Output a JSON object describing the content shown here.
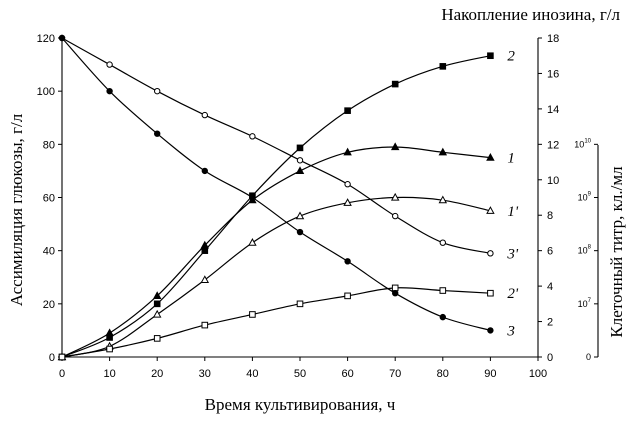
{
  "chart_data": {
    "type": "line",
    "title": "Накопление инозина, г/л",
    "xlabel": "Время культивирования, ч",
    "ylabel_left": "Ассимиляция глюкозы, г/л",
    "ylabel_right_outer": "Клеточный титр, кл./мл",
    "xlim": [
      0,
      100
    ],
    "ylim_left": [
      0,
      120
    ],
    "ylim_right": [
      0,
      18
    ],
    "x_ticks": [
      0,
      10,
      20,
      30,
      40,
      50,
      60,
      70,
      80,
      90,
      100
    ],
    "y_left_ticks": [
      0,
      20,
      40,
      60,
      80,
      100,
      120
    ],
    "y_right_ticks": [
      0,
      2,
      4,
      6,
      8,
      10,
      12,
      14,
      16,
      18
    ],
    "titer_ticks": [
      {
        "label": "0",
        "value": 0
      },
      {
        "label": "10^7",
        "value": 20
      },
      {
        "label": "10^8",
        "value": 40
      },
      {
        "label": "10^9",
        "value": 60
      },
      {
        "label": "10^10",
        "value": 80
      }
    ],
    "series": [
      {
        "name": "2",
        "marker": "square-filled",
        "axis": "right",
        "x": [
          0,
          10,
          20,
          30,
          40,
          50,
          60,
          70,
          80,
          90
        ],
        "values": [
          0,
          1.1,
          3.0,
          6.0,
          9.1,
          11.8,
          13.9,
          15.4,
          16.4,
          17.0
        ]
      },
      {
        "name": "1",
        "marker": "triangle-filled",
        "axis": "left",
        "x": [
          0,
          10,
          20,
          30,
          40,
          50,
          60,
          70,
          80,
          90
        ],
        "values": [
          0,
          9,
          23,
          42,
          59,
          70,
          77,
          79,
          77,
          75
        ]
      },
      {
        "name": "1'",
        "marker": "triangle-open",
        "axis": "left",
        "x": [
          0,
          10,
          20,
          30,
          40,
          50,
          60,
          70,
          80,
          90
        ],
        "values": [
          0,
          4,
          16,
          29,
          43,
          53,
          58,
          60,
          59,
          55
        ]
      },
      {
        "name": "3'",
        "marker": "circle-open",
        "axis": "left",
        "x": [
          0,
          10,
          20,
          30,
          40,
          50,
          60,
          70,
          80,
          90
        ],
        "values": [
          120,
          110,
          100,
          91,
          83,
          74,
          65,
          53,
          43,
          39
        ]
      },
      {
        "name": "2'",
        "marker": "square-open",
        "axis": "left",
        "x": [
          0,
          10,
          20,
          30,
          40,
          50,
          60,
          70,
          80,
          90
        ],
        "values": [
          0,
          3,
          7,
          12,
          16,
          20,
          23,
          26,
          25,
          24
        ]
      },
      {
        "name": "3",
        "marker": "circle-filled",
        "axis": "left",
        "x": [
          0,
          10,
          20,
          30,
          40,
          50,
          60,
          70,
          80,
          90
        ],
        "values": [
          120,
          100,
          84,
          70,
          60,
          47,
          36,
          24,
          15,
          10
        ]
      }
    ]
  }
}
